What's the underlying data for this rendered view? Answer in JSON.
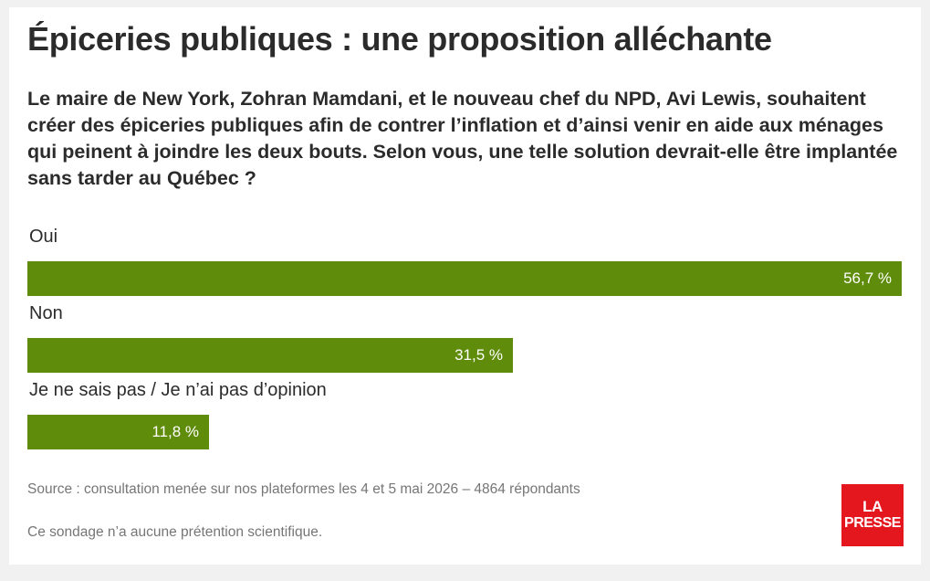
{
  "title": "Épiceries publiques : une proposition alléchante",
  "question": "Le maire de New York, Zohran Mamdani, et le nouveau chef du NPD, Avi Lewis, souhaitent créer des épiceries publiques afin de contrer l’inflation et d’ainsi venir en aide aux ménages qui peinent à joindre les deux bouts. Selon vous, une telle solution devrait-elle être implantée sans tarder au Québec ?",
  "colors": {
    "bar": "#5f8c0a",
    "brand": "#e4161e"
  },
  "chart_data": {
    "type": "bar",
    "orientation": "horizontal",
    "categories": [
      "Oui",
      "Non",
      "Je ne sais pas / Je n’ai pas d’opinion"
    ],
    "values": [
      56.7,
      31.5,
      11.8
    ],
    "value_labels": [
      "56,7 %",
      "31,5 %",
      "11,8 %"
    ],
    "unit": "%",
    "grid": false,
    "legend": "none"
  },
  "footer": {
    "source": "Source : consultation menée sur nos plateformes les 4 et 5 mai 2026 – 4864 répondants",
    "disclaimer": "Ce sondage n’a aucune prétention scientifique.",
    "logo_line1": "LA",
    "logo_line2": "PRESSE"
  }
}
